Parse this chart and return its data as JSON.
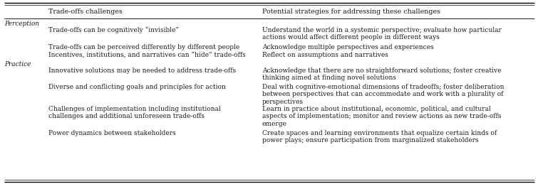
{
  "col1_header": "Trade-offs challenges",
  "col2_header": "Potential strategies for addressing these challenges",
  "bg_color": "#ffffff",
  "text_color": "#1a1a1a",
  "font_size": 6.5,
  "header_font_size": 6.8,
  "rows": [
    {
      "category": "Perception",
      "challenge": "Trade-offs can be cognitively “invisible”",
      "strategy": "Understand the world in a systemic perspective; evaluate how particular\nactions would affect different people in different ways"
    },
    {
      "category": "Perception",
      "challenge": "Trade-offs can be perceived differently by different people",
      "strategy": "Acknowledge multiple perspectives and experiences"
    },
    {
      "category": "Perception",
      "challenge": "Incentives, institutions, and narratives can “hide” trade-offs",
      "strategy": "Reflect on assumptions and narratives"
    },
    {
      "category": "Practice",
      "challenge": "Innovative solutions may be needed to address trade-offs",
      "strategy": "Acknowledge that there are no straightforward solutions; foster creative\nthinking aimed at finding novel solutions"
    },
    {
      "category": "Practice",
      "challenge": "Diverse and conflicting goals and principles for action",
      "strategy": "Deal with cognitive-emotional dimensions of tradeoffs; foster deliberation\nbetween perspectives that can accommodate and work with a plurality of\nperspectives"
    },
    {
      "category": "Practice",
      "challenge": "Challenges of implementation including institutional\nchallenges and additional unforeseen trade-offs",
      "strategy": "Learn in practice about institutional, economic, political, and cultural\naspects of implementation; monitor and review actions as new trade-offs\nemerge"
    },
    {
      "category": "Practice",
      "challenge": "Power dynamics between stakeholders",
      "strategy": "Create spaces and learning environments that equalize certain kinds of\npower plays; ensure participation from marginalized stakeholders"
    }
  ]
}
